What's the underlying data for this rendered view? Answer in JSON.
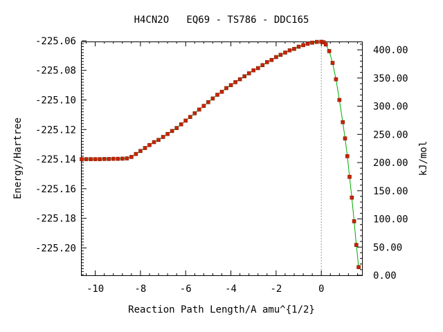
{
  "chart_data": {
    "type": "scatter",
    "title": "H4CN2O   EQ69 - TS786 - DDC165",
    "xlabel": "Reaction Path Length/A amu^{1/2}",
    "ylabel": "Energy/Hartree",
    "y2label": "kJ/mol",
    "xlim": [
      -10.6,
      1.8
    ],
    "ylim": [
      -225.2185,
      -225.0605
    ],
    "y2lim": [
      0.0,
      414.8
    ],
    "x_ticks": [
      -10,
      -8,
      -6,
      -4,
      -2,
      0
    ],
    "x_tick_labels": [
      "-10",
      "-8",
      "-6",
      "-4",
      "-2",
      "0"
    ],
    "y_ticks": [
      -225.06,
      -225.08,
      -225.1,
      -225.12,
      -225.14,
      -225.16,
      -225.18,
      -225.2
    ],
    "y_tick_labels": [
      "-225.06",
      "-225.08",
      "-225.10",
      "-225.12",
      "-225.14",
      "-225.16",
      "-225.18",
      "-225.20"
    ],
    "y2_ticks": [
      0,
      50,
      100,
      150,
      200,
      250,
      300,
      350,
      400
    ],
    "y2_tick_labels": [
      "0.00",
      "50.00",
      "100.00",
      "150.00",
      "200.00",
      "250.00",
      "300.00",
      "350.00",
      "400.00"
    ],
    "ts_marker_x": 0,
    "grid": false,
    "colors": {
      "points": "#cc2200",
      "line": "#00aa00",
      "ts_line": "#999999"
    },
    "series": [
      {
        "x": [
          -10.6,
          -10.4,
          -10.2,
          -10.0,
          -9.8,
          -9.6,
          -9.4,
          -9.2,
          -9.0,
          -8.8,
          -8.6,
          -8.4,
          -8.2,
          -8.0,
          -7.8,
          -7.6,
          -7.4,
          -7.2,
          -7.0,
          -6.8,
          -6.6,
          -6.4,
          -6.2,
          -6.0,
          -5.8,
          -5.6,
          -5.4,
          -5.2,
          -5.0,
          -4.8,
          -4.6,
          -4.4,
          -4.2,
          -4.0,
          -3.8,
          -3.6,
          -3.4,
          -3.2,
          -3.0,
          -2.8,
          -2.6,
          -2.4,
          -2.2,
          -2.0,
          -1.8,
          -1.6,
          -1.4,
          -1.2,
          -1.0,
          -0.8,
          -0.6,
          -0.4,
          -0.2,
          0.0,
          0.1,
          0.2,
          0.35,
          0.5,
          0.65,
          0.8,
          0.95,
          1.05,
          1.15,
          1.25,
          1.35,
          1.45,
          1.55,
          1.65
        ],
        "y": [
          -225.14,
          -225.14,
          -225.14,
          -225.14,
          -225.14,
          -225.1399,
          -225.1399,
          -225.1398,
          -225.1398,
          -225.1397,
          -225.1395,
          -225.1385,
          -225.1365,
          -225.1345,
          -225.1325,
          -225.1305,
          -225.1285,
          -225.127,
          -225.125,
          -225.123,
          -225.121,
          -225.119,
          -225.1165,
          -225.114,
          -225.1115,
          -225.109,
          -225.1065,
          -225.104,
          -225.1015,
          -225.099,
          -225.0965,
          -225.0945,
          -225.092,
          -225.09,
          -225.088,
          -225.086,
          -225.084,
          -225.082,
          -225.08,
          -225.0785,
          -225.0765,
          -225.0745,
          -225.073,
          -225.071,
          -225.0695,
          -225.068,
          -225.0665,
          -225.0655,
          -225.064,
          -225.063,
          -225.062,
          -225.0613,
          -225.0608,
          -225.0607,
          -225.061,
          -225.0625,
          -225.067,
          -225.075,
          -225.086,
          -225.1,
          -225.115,
          -225.126,
          -225.138,
          -225.152,
          -225.166,
          -225.182,
          -225.198,
          -225.213
        ]
      }
    ]
  }
}
